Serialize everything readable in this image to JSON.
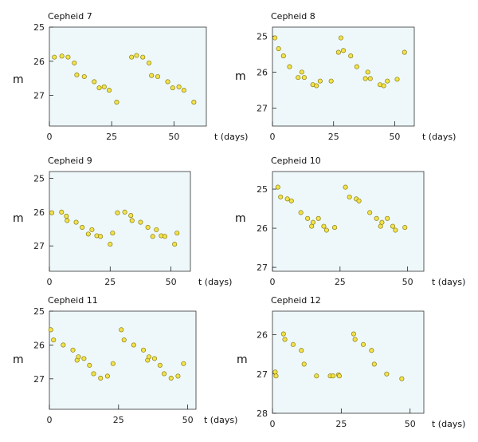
{
  "chart_data": [
    {
      "type": "scatter",
      "title": "Cepheid 7",
      "xlabel": "t (days)",
      "ylabel": "m",
      "xlim": [
        0,
        63
      ],
      "ylim": [
        25,
        27.9
      ],
      "x_ticks": [
        0,
        25,
        50
      ],
      "y_ticks": [
        25,
        26,
        27
      ],
      "y_inverted": true,
      "points": [
        {
          "x": 2,
          "y": 25.88
        },
        {
          "x": 5,
          "y": 25.85
        },
        {
          "x": 7.5,
          "y": 25.88
        },
        {
          "x": 10,
          "y": 26.05
        },
        {
          "x": 11,
          "y": 26.4
        },
        {
          "x": 14,
          "y": 26.45
        },
        {
          "x": 18,
          "y": 26.6
        },
        {
          "x": 20,
          "y": 26.78
        },
        {
          "x": 22,
          "y": 26.75
        },
        {
          "x": 24,
          "y": 26.85
        },
        {
          "x": 27,
          "y": 27.2
        },
        {
          "x": 33,
          "y": 25.88
        },
        {
          "x": 35,
          "y": 25.83
        },
        {
          "x": 37.5,
          "y": 25.88
        },
        {
          "x": 40,
          "y": 26.05
        },
        {
          "x": 41,
          "y": 26.42
        },
        {
          "x": 43.5,
          "y": 26.45
        },
        {
          "x": 47.5,
          "y": 26.6
        },
        {
          "x": 49.5,
          "y": 26.78
        },
        {
          "x": 52,
          "y": 26.75
        },
        {
          "x": 54,
          "y": 26.85
        },
        {
          "x": 58,
          "y": 27.2
        }
      ]
    },
    {
      "type": "scatter",
      "title": "Cepheid 8",
      "xlabel": "t (days)",
      "ylabel": "m",
      "xlim": [
        0,
        58
      ],
      "ylim": [
        24.75,
        27.5
      ],
      "x_ticks": [
        0,
        25,
        50
      ],
      "y_ticks": [
        25,
        26,
        27
      ],
      "y_inverted": true,
      "points": [
        {
          "x": 1,
          "y": 25.05
        },
        {
          "x": 2.5,
          "y": 25.35
        },
        {
          "x": 4.5,
          "y": 25.55
        },
        {
          "x": 7,
          "y": 25.85
        },
        {
          "x": 10.5,
          "y": 26.15
        },
        {
          "x": 12,
          "y": 26.0
        },
        {
          "x": 13,
          "y": 26.15
        },
        {
          "x": 16.5,
          "y": 26.35
        },
        {
          "x": 18,
          "y": 26.38
        },
        {
          "x": 19.5,
          "y": 26.25
        },
        {
          "x": 24,
          "y": 26.25
        },
        {
          "x": 27,
          "y": 25.45
        },
        {
          "x": 28,
          "y": 25.05
        },
        {
          "x": 29,
          "y": 25.4
        },
        {
          "x": 32,
          "y": 25.55
        },
        {
          "x": 34.5,
          "y": 25.85
        },
        {
          "x": 38,
          "y": 26.18
        },
        {
          "x": 39,
          "y": 26.0
        },
        {
          "x": 40,
          "y": 26.18
        },
        {
          "x": 44,
          "y": 26.35
        },
        {
          "x": 45.5,
          "y": 26.38
        },
        {
          "x": 47,
          "y": 26.25
        },
        {
          "x": 51,
          "y": 26.2
        },
        {
          "x": 54,
          "y": 25.45
        }
      ]
    },
    {
      "type": "scatter",
      "title": "Cepheid 9",
      "xlabel": "t (days)",
      "ylabel": "m",
      "xlim": [
        0,
        58
      ],
      "ylim": [
        24.8,
        27.75
      ],
      "x_ticks": [
        0,
        25,
        50
      ],
      "y_ticks": [
        25,
        26,
        27
      ],
      "y_inverted": true,
      "points": [
        {
          "x": 1,
          "y": 26.02
        },
        {
          "x": 5,
          "y": 26.0
        },
        {
          "x": 7,
          "y": 26.12
        },
        {
          "x": 7.3,
          "y": 26.25
        },
        {
          "x": 11,
          "y": 26.3
        },
        {
          "x": 13.5,
          "y": 26.45
        },
        {
          "x": 16,
          "y": 26.65
        },
        {
          "x": 17.5,
          "y": 26.52
        },
        {
          "x": 19.5,
          "y": 26.7
        },
        {
          "x": 21,
          "y": 26.72
        },
        {
          "x": 25,
          "y": 26.95
        },
        {
          "x": 26,
          "y": 26.62
        },
        {
          "x": 28,
          "y": 26.02
        },
        {
          "x": 31,
          "y": 26.0
        },
        {
          "x": 33.5,
          "y": 26.1
        },
        {
          "x": 34,
          "y": 26.25
        },
        {
          "x": 37.5,
          "y": 26.3
        },
        {
          "x": 40.5,
          "y": 26.45
        },
        {
          "x": 42.5,
          "y": 26.72
        },
        {
          "x": 44,
          "y": 26.52
        },
        {
          "x": 46,
          "y": 26.7
        },
        {
          "x": 47.5,
          "y": 26.72
        },
        {
          "x": 51.5,
          "y": 26.95
        },
        {
          "x": 52.5,
          "y": 26.62
        }
      ]
    },
    {
      "type": "scatter",
      "title": "Cepheid 10",
      "xlabel": "t (days)",
      "ylabel": "m",
      "xlim": [
        0,
        56
      ],
      "ylim": [
        24.55,
        27.1
      ],
      "x_ticks": [
        0,
        25,
        50
      ],
      "y_ticks": [
        25,
        26,
        27
      ],
      "y_inverted": true,
      "points": [
        {
          "x": 2,
          "y": 24.95
        },
        {
          "x": 3,
          "y": 25.2
        },
        {
          "x": 5.5,
          "y": 25.25
        },
        {
          "x": 7,
          "y": 25.3
        },
        {
          "x": 10.5,
          "y": 25.6
        },
        {
          "x": 13,
          "y": 25.75
        },
        {
          "x": 14.5,
          "y": 25.95
        },
        {
          "x": 15,
          "y": 25.85
        },
        {
          "x": 17,
          "y": 25.75
        },
        {
          "x": 19,
          "y": 25.95
        },
        {
          "x": 20,
          "y": 26.05
        },
        {
          "x": 23,
          "y": 25.98
        },
        {
          "x": 27,
          "y": 24.95
        },
        {
          "x": 28.5,
          "y": 25.2
        },
        {
          "x": 31,
          "y": 25.25
        },
        {
          "x": 32,
          "y": 25.3
        },
        {
          "x": 36,
          "y": 25.6
        },
        {
          "x": 38.5,
          "y": 25.75
        },
        {
          "x": 40,
          "y": 25.95
        },
        {
          "x": 40.5,
          "y": 25.85
        },
        {
          "x": 42.5,
          "y": 25.75
        },
        {
          "x": 44.5,
          "y": 25.95
        },
        {
          "x": 45.5,
          "y": 26.05
        },
        {
          "x": 49,
          "y": 25.98
        }
      ]
    },
    {
      "type": "scatter",
      "title": "Cepheid 11",
      "xlabel": "t (days)",
      "ylabel": "m",
      "xlim": [
        0,
        53
      ],
      "ylim": [
        25,
        27.9
      ],
      "x_ticks": [
        0,
        25,
        50
      ],
      "y_ticks": [
        25,
        26,
        27
      ],
      "y_inverted": true,
      "points": [
        {
          "x": 0.5,
          "y": 25.55
        },
        {
          "x": 1.5,
          "y": 25.85
        },
        {
          "x": 5,
          "y": 26.0
        },
        {
          "x": 8.5,
          "y": 26.15
        },
        {
          "x": 10,
          "y": 26.45
        },
        {
          "x": 10.5,
          "y": 26.35
        },
        {
          "x": 12.5,
          "y": 26.4
        },
        {
          "x": 14.5,
          "y": 26.6
        },
        {
          "x": 16,
          "y": 26.85
        },
        {
          "x": 18.5,
          "y": 26.98
        },
        {
          "x": 21,
          "y": 26.92
        },
        {
          "x": 23,
          "y": 26.55
        },
        {
          "x": 26,
          "y": 25.55
        },
        {
          "x": 27,
          "y": 25.85
        },
        {
          "x": 30.5,
          "y": 26.0
        },
        {
          "x": 34,
          "y": 26.15
        },
        {
          "x": 35.5,
          "y": 26.45
        },
        {
          "x": 36,
          "y": 26.35
        },
        {
          "x": 38,
          "y": 26.4
        },
        {
          "x": 40,
          "y": 26.6
        },
        {
          "x": 41.5,
          "y": 26.85
        },
        {
          "x": 44,
          "y": 26.98
        },
        {
          "x": 46.5,
          "y": 26.92
        },
        {
          "x": 48.5,
          "y": 26.55
        }
      ]
    },
    {
      "type": "scatter",
      "title": "Cepheid 12",
      "xlabel": "t (days)",
      "ylabel": "m",
      "xlim": [
        0,
        55
      ],
      "ylim": [
        25.4,
        28
      ],
      "x_ticks": [
        0,
        25,
        50
      ],
      "y_ticks": [
        26,
        27,
        28
      ],
      "y_inverted": true,
      "points": [
        {
          "x": 1,
          "y": 26.95
        },
        {
          "x": 1.3,
          "y": 27.05
        },
        {
          "x": 4,
          "y": 25.98
        },
        {
          "x": 4.5,
          "y": 26.12
        },
        {
          "x": 7.5,
          "y": 26.25
        },
        {
          "x": 10.5,
          "y": 26.4
        },
        {
          "x": 11.5,
          "y": 26.75
        },
        {
          "x": 16,
          "y": 27.05
        },
        {
          "x": 21,
          "y": 27.05
        },
        {
          "x": 22,
          "y": 27.05
        },
        {
          "x": 24,
          "y": 27.02
        },
        {
          "x": 24.3,
          "y": 27.05
        },
        {
          "x": 29.5,
          "y": 25.98
        },
        {
          "x": 30,
          "y": 26.12
        },
        {
          "x": 33,
          "y": 26.25
        },
        {
          "x": 36,
          "y": 26.4
        },
        {
          "x": 37,
          "y": 26.75
        },
        {
          "x": 41.5,
          "y": 27.0
        },
        {
          "x": 47,
          "y": 27.12
        }
      ]
    }
  ]
}
